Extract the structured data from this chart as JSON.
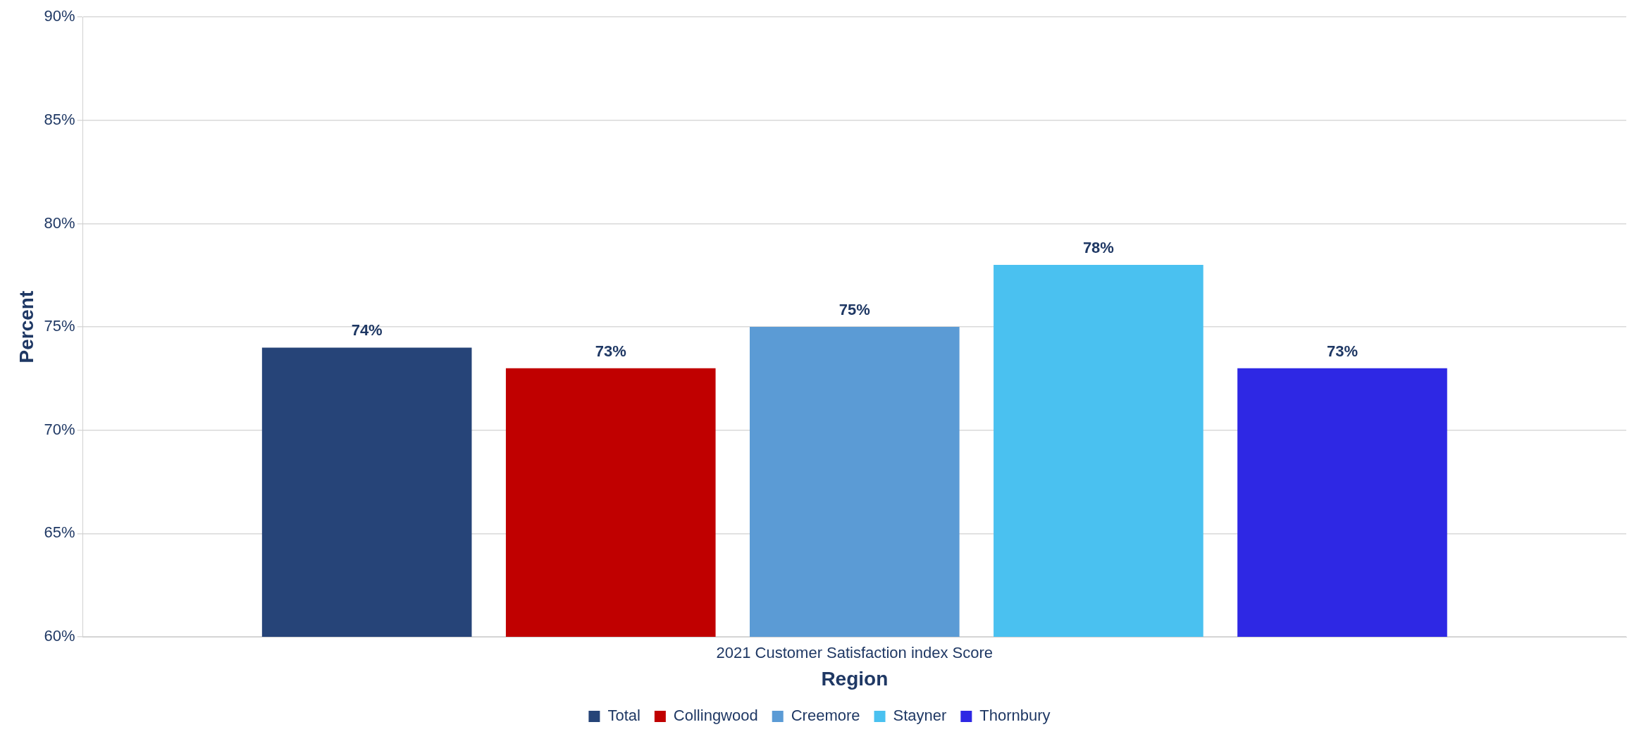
{
  "chart_data": {
    "type": "bar",
    "xlabel": "Region",
    "ylabel": "Percent",
    "categories": [
      "2021 Customer Satisfaction index Score"
    ],
    "series": [
      {
        "name": "Total",
        "color": "#264478",
        "values": [
          74
        ],
        "value_labels": [
          "74%"
        ]
      },
      {
        "name": "Collingwood",
        "color": "#c00000",
        "values": [
          73
        ],
        "value_labels": [
          "73%"
        ]
      },
      {
        "name": "Creemore",
        "color": "#5b9bd5",
        "values": [
          75
        ],
        "value_labels": [
          "75%"
        ]
      },
      {
        "name": "Stayner",
        "color": "#4ac1f0",
        "values": [
          78
        ],
        "value_labels": [
          "78%"
        ]
      },
      {
        "name": "Thornbury",
        "color": "#2e28e4",
        "values": [
          73
        ],
        "value_labels": [
          "73%"
        ]
      }
    ],
    "ylim": [
      60,
      90
    ],
    "yticks": [
      {
        "value": 60,
        "label": "60%"
      },
      {
        "value": 65,
        "label": "65%"
      },
      {
        "value": 70,
        "label": "70%"
      },
      {
        "value": 75,
        "label": "75%"
      },
      {
        "value": 80,
        "label": "80%"
      },
      {
        "value": 85,
        "label": "85%"
      },
      {
        "value": 90,
        "label": "90%"
      }
    ],
    "grid": "y",
    "legend": "bottom"
  }
}
